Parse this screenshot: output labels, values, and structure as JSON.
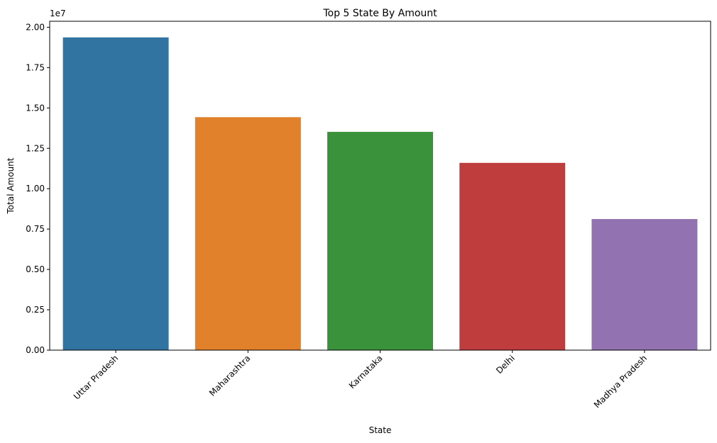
{
  "chart_data": {
    "type": "bar",
    "title": "Top 5 State By Amount",
    "xlabel": "State",
    "ylabel": "Total Amount",
    "y_scale_note": "1e7",
    "categories": [
      "Uttar Pradesh",
      "Maharashtra",
      "Karnataka",
      "Delhi",
      "Madhya Pradesh"
    ],
    "values": [
      19370000,
      14430000,
      13520000,
      11600000,
      8120000
    ],
    "colors": [
      "#3274a1",
      "#e1812c",
      "#3a923a",
      "#c03d3e",
      "#9372b2"
    ],
    "ylim": [
      0,
      20370000
    ],
    "yticks": [
      {
        "value": 0,
        "label": "0.00"
      },
      {
        "value": 2500000,
        "label": "0.25"
      },
      {
        "value": 5000000,
        "label": "0.50"
      },
      {
        "value": 7500000,
        "label": "0.75"
      },
      {
        "value": 10000000,
        "label": "1.00"
      },
      {
        "value": 12500000,
        "label": "1.25"
      },
      {
        "value": 15000000,
        "label": "1.50"
      },
      {
        "value": 17500000,
        "label": "1.75"
      },
      {
        "value": 20000000,
        "label": "2.00"
      }
    ],
    "grid": false,
    "legend": "none"
  }
}
